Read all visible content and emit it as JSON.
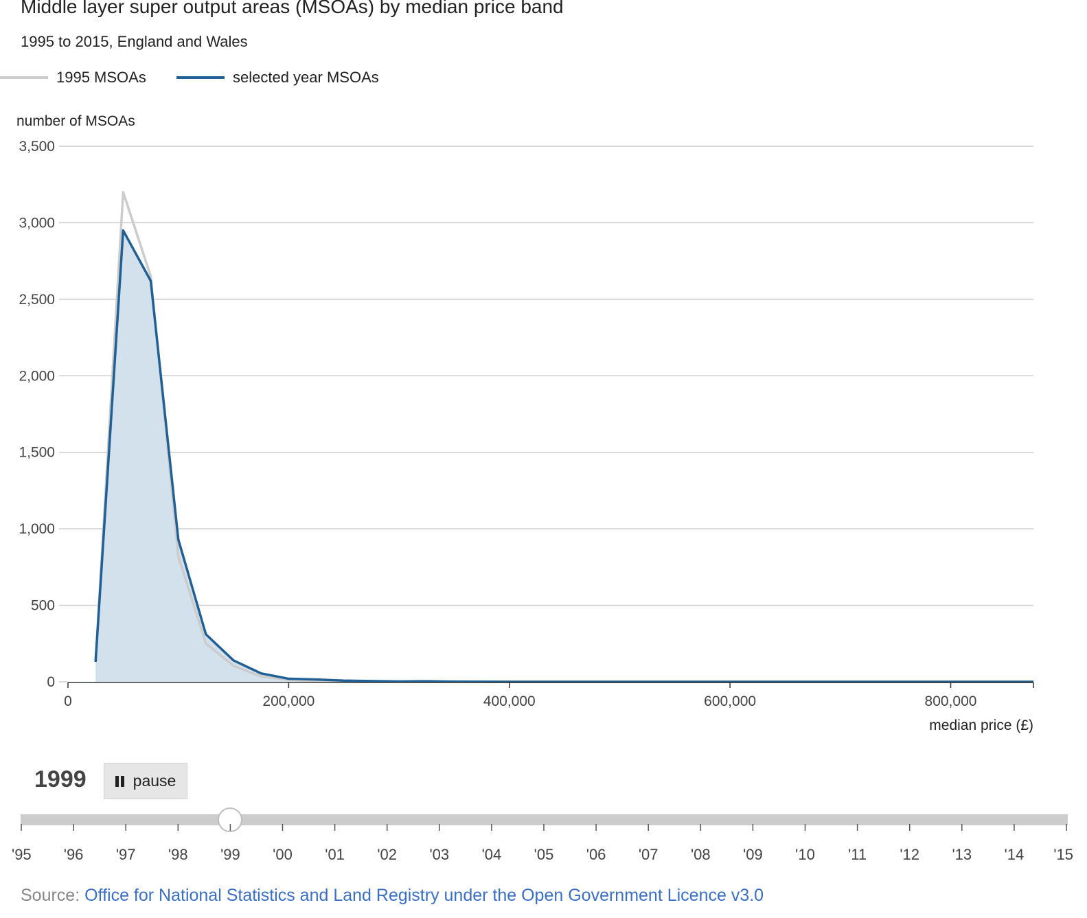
{
  "header": {
    "title": "Middle layer super output areas (MSOAs) by median price band",
    "subtitle": "1995 to 2015, England and Wales"
  },
  "legend": {
    "items": [
      {
        "label": "1995 MSOAs",
        "color": "#cccccc"
      },
      {
        "label": "selected year MSOAs",
        "color": "#206095"
      }
    ]
  },
  "colors": {
    "baseline": "#cccccc",
    "selected": "#206095",
    "fill": "#d3e1ed",
    "grid": "#cccccc",
    "accent_link": "#3a6fc4"
  },
  "chart_data": {
    "type": "area",
    "ylabel": "number of MSOAs",
    "xlabel": "median price (£)",
    "xlim": [
      0,
      875000
    ],
    "ylim": [
      0,
      3500
    ],
    "yticks": [
      0,
      500,
      1000,
      1500,
      2000,
      2500,
      3000,
      3500
    ],
    "ytick_labels": [
      "0",
      "500",
      "1,000",
      "1,500",
      "2,000",
      "2,500",
      "3,000",
      "3,500"
    ],
    "xticks": [
      0,
      200000,
      400000,
      600000,
      800000
    ],
    "xtick_labels": [
      "0",
      "200,000",
      "400,000",
      "600,000",
      "800,000"
    ],
    "grid": true,
    "series": [
      {
        "name": "1995 MSOAs",
        "x": [
          25000,
          50000,
          75000,
          100000,
          125000,
          150000,
          175000,
          200000,
          225000,
          250000,
          300000,
          350000,
          400000,
          500000,
          600000,
          700000,
          800000,
          875000
        ],
        "values": [
          130,
          3200,
          2650,
          820,
          250,
          105,
          35,
          12,
          5,
          2,
          1,
          0,
          0,
          0,
          0,
          0,
          0,
          0
        ]
      },
      {
        "name": "selected year MSOAs",
        "x": [
          25000,
          50000,
          75000,
          100000,
          125000,
          150000,
          175000,
          200000,
          225000,
          250000,
          300000,
          325000,
          350000,
          400000,
          500000,
          600000,
          700000,
          800000,
          875000
        ],
        "values": [
          130,
          2950,
          2620,
          930,
          310,
          140,
          55,
          20,
          15,
          8,
          2,
          4,
          1,
          0,
          0,
          0,
          0,
          0,
          0
        ]
      }
    ]
  },
  "controls": {
    "year": "1999",
    "pause_label": "pause",
    "selected_year_index": 4,
    "timeline_labels": [
      "'95",
      "'96",
      "'97",
      "'98",
      "'99",
      "'00",
      "'01",
      "'02",
      "'03",
      "'04",
      "'05",
      "'06",
      "'07",
      "'08",
      "'09",
      "'10",
      "'11",
      "'12",
      "'13",
      "'14",
      "'15"
    ]
  },
  "footer": {
    "source_prefix": "Source:",
    "source_link": "Office for National Statistics and Land Registry under the Open Government Licence v3.0"
  }
}
